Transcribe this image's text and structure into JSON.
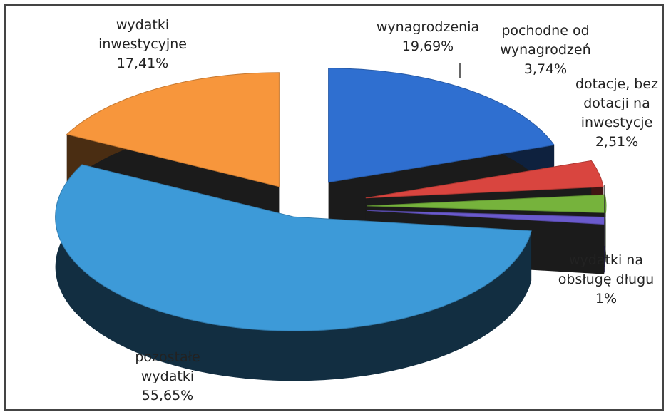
{
  "chart_data": {
    "type": "pie",
    "categories": [
      "wynagrodzenia",
      "pochodne od wynagrodzeń",
      "dotacje, bez dotacji na inwestycje",
      "wydatki na obsługę długu",
      "pozostałe wydatki",
      "wydatki inwestycyjne"
    ],
    "values": [
      19.69,
      3.74,
      2.51,
      1,
      55.65,
      17.41
    ],
    "value_labels": [
      "19,69%",
      "3,74%",
      "2,51%",
      "1%",
      "55,65%",
      "17,41%"
    ],
    "colors": [
      "#2f6fd0",
      "#d9453f",
      "#76b33c",
      "#6a5acd",
      "#3d9ad8",
      "#f7963c"
    ]
  }
}
